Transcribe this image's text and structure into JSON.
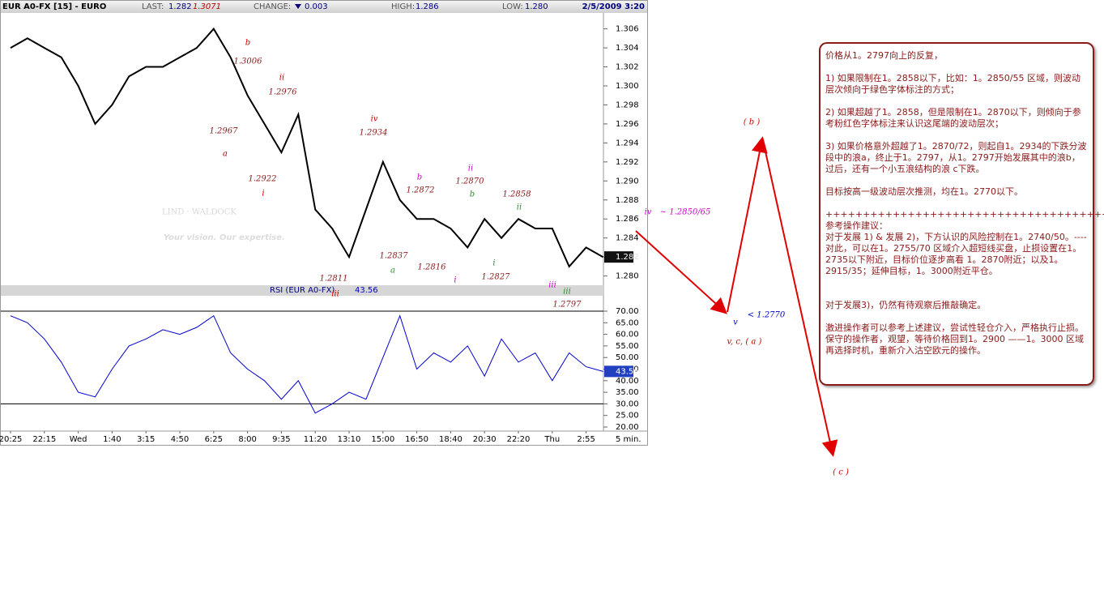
{
  "header": {
    "symbol": "EUR A0-FX [15] - EURO",
    "last_label": "LAST:",
    "last": "1.282",
    "last_high": "1.3071",
    "change_label": "CHANGE:",
    "change": "0.003",
    "high_label": "HIGH:",
    "high": "1.286",
    "low_label": "LOW:",
    "low": "1.280",
    "datetime": "2/5/2009 3:20"
  },
  "watermark": {
    "brand": "LIND · WALDOCK",
    "tagline": "Your vision. Our expertise."
  },
  "chart_data": [
    {
      "type": "line",
      "color": "#000000",
      "categories": [
        "20:25",
        null,
        "22:15",
        null,
        "Wed",
        null,
        "1:40",
        null,
        "3:15",
        null,
        "4:50",
        null,
        "6:25",
        null,
        "8:00",
        null,
        "9:35",
        null,
        "11:20",
        null,
        "13:10",
        null,
        "15:00",
        null,
        "16:50",
        null,
        "18:40",
        null,
        "20:30",
        null,
        "22:20",
        null,
        "Thu",
        null,
        "2:55",
        null
      ],
      "values": [
        1.304,
        1.305,
        1.304,
        1.303,
        1.3,
        1.296,
        1.298,
        1.301,
        1.302,
        1.302,
        1.303,
        1.304,
        1.306,
        1.303,
        1.299,
        1.296,
        1.293,
        1.297,
        1.287,
        1.285,
        1.282,
        1.287,
        1.292,
        1.288,
        1.286,
        1.286,
        1.285,
        1.283,
        1.286,
        1.284,
        1.286,
        1.285,
        1.285,
        1.281,
        1.283,
        1.282
      ],
      "ylim": [
        1.2792,
        1.3075
      ],
      "yticks": [
        {
          "value": 1.28,
          "label": "1.280"
        },
        1.282,
        1.284,
        1.286,
        1.288,
        {
          "value": 1.29,
          "label": "1.290"
        },
        1.292,
        1.294,
        1.296,
        1.298,
        {
          "value": 1.3,
          "label": "1.300"
        },
        1.302,
        1.304,
        1.306
      ],
      "current_label": "1.282",
      "x_unit": "5 min."
    },
    {
      "type": "line",
      "title": "RSI (EUR A0-FX)",
      "current": "43.56",
      "color": "#0000cc",
      "values": [
        68,
        65,
        58,
        48,
        35,
        33,
        45,
        55,
        58,
        62,
        60,
        63,
        68,
        52,
        45,
        40,
        32,
        40,
        26,
        30,
        35,
        32,
        50,
        68,
        45,
        52,
        48,
        55,
        42,
        58,
        48,
        52,
        40,
        52,
        46,
        44
      ],
      "ylim": [
        18.25,
        76.3
      ],
      "yticks": [
        {
          "value": 20,
          "label": "20.00"
        },
        {
          "value": 25,
          "label": "25.00"
        },
        {
          "value": 30,
          "label": "30.00"
        },
        {
          "value": 35,
          "label": "35.00"
        },
        {
          "value": 40,
          "label": "40.00"
        },
        {
          "value": 45,
          "label": "45.00"
        },
        {
          "value": 50,
          "label": "50.00"
        },
        {
          "value": 55,
          "label": "55.00"
        },
        {
          "value": 60,
          "label": "60.00"
        },
        {
          "value": 65,
          "label": "65.00"
        },
        {
          "value": 70,
          "label": "70.00"
        }
      ],
      "reference_lines": [
        70,
        30
      ]
    }
  ],
  "annotations": [
    {
      "text": "b",
      "color": "#d00000"
    },
    {
      "text": "1.3006",
      "color": "#8b1a1a"
    },
    {
      "text": "ii",
      "color": "#d00000"
    },
    {
      "text": "1.2976",
      "color": "#8b1a1a"
    },
    {
      "text": "1.2967",
      "color": "#8b1a1a"
    },
    {
      "text": "a",
      "color": "#d00000"
    },
    {
      "text": "iv",
      "color": "#d00000"
    },
    {
      "text": "1.2934",
      "color": "#8b1a1a"
    },
    {
      "text": "1.2922",
      "color": "#8b1a1a"
    },
    {
      "text": "i",
      "color": "#d00000"
    },
    {
      "text": "b",
      "color": "#cc00cc"
    },
    {
      "text": "1.2872",
      "color": "#8b1a1a"
    },
    {
      "text": "ii",
      "color": "#cc00cc"
    },
    {
      "text": "1.2870",
      "color": "#8b1a1a"
    },
    {
      "text": "b",
      "color": "#2e8b2e"
    },
    {
      "text": "1.2858",
      "color": "#8b1a1a"
    },
    {
      "text": "ii",
      "color": "#2e8b2e"
    },
    {
      "text": "1.2837",
      "color": "#8b1a1a"
    },
    {
      "text": "a",
      "color": "#2e8b2e"
    },
    {
      "text": "1.2816",
      "color": "#8b1a1a"
    },
    {
      "text": "i",
      "color": "#2e8b2e"
    },
    {
      "text": "i",
      "color": "#cc00cc"
    },
    {
      "text": "1.2827",
      "color": "#8b1a1a"
    },
    {
      "text": "1.2811",
      "color": "#8b1a1a"
    },
    {
      "text": "iii",
      "color": "#d00000"
    },
    {
      "text": "iii",
      "color": "#cc00cc"
    },
    {
      "text": "iii",
      "color": "#2e8b2e"
    },
    {
      "text": "1.2797",
      "color": "#8b1a1a"
    }
  ],
  "projection_labels": [
    {
      "text": "iv",
      "color": "#cc00cc"
    },
    {
      "text": "~ 1.2850/65",
      "color": "#cc00cc"
    },
    {
      "text": "< 1.2770",
      "color": "#0000cc"
    },
    {
      "text": "v",
      "color": "#0000cc"
    },
    {
      "text": "v,  c,  ( a )",
      "color": "#d00000"
    },
    {
      "text": "( b )",
      "color": "#d00000"
    },
    {
      "text": "( c )",
      "color": "#d00000"
    }
  ],
  "notes": [
    "价格从1。2797向上的反复，",
    "1) 如果限制在1。2858以下，比如：1。2850/55 区域，则波动层次倾向于绿色字体标注的方式；",
    "2) 如果超越了1。2858，但是限制在1。2870以下，则倾向于参考粉红色字体标注来认识这尾端的波动层次；",
    "3) 如果价格意外超越了1。2870/72，则起自1。2934的下跌分波段中的浪a，终止于1。2797，从1。2797开始发展其中的浪b，过后，还有一个小五浪结构的浪 c下跌。",
    "目标按高一级波动层次推测，均在1。2770以下。",
    "+++++++++++++++++++++++++++++++++++++++",
    "参考操作建议：",
    "对于发展 1) & 发展 2)，下方认识的风险控制在1。2740/50。---- 对此，可以在1。2755/70 区域介入超短线买盘，止损设置在1。2735以下附近，目标价位逐步高看 1。2870附近；以及1。2915/35；延伸目标，1。3000附近平仓。",
    "对于发展3)，仍然有待观察后推敲确定。",
    "激进操作者可以参考上述建议，尝试性轻仓介入，严格执行止损。",
    "保守的操作者，观望，等待价格回到1。2900 ——1。3000 区域再选择时机，重新介入沽空欧元的操作。"
  ]
}
